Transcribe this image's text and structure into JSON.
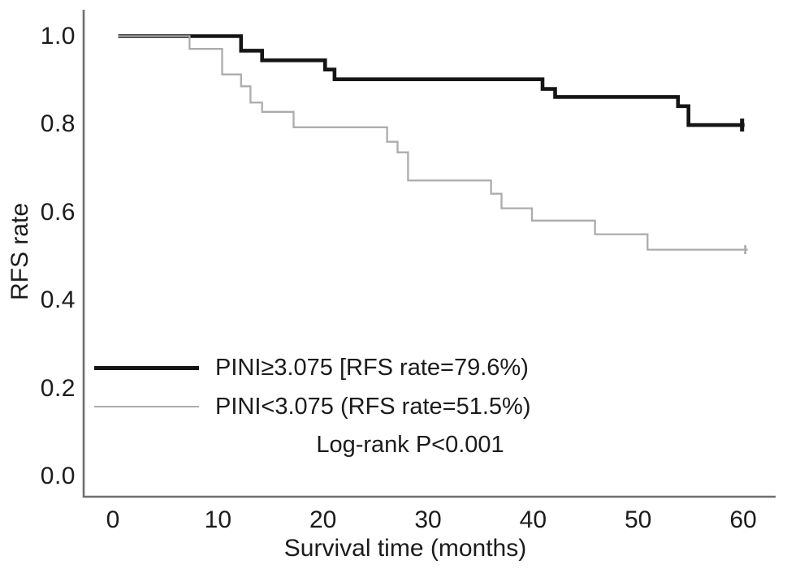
{
  "chart_data": {
    "type": "line",
    "subtype": "kaplan_meier_step",
    "title": "",
    "xlabel": "Survival time (months)",
    "ylabel": "RFS rate",
    "xlim": [
      0,
      60
    ],
    "ylim": [
      0.0,
      1.0
    ],
    "grid": false,
    "legend_position": "inside lower-left",
    "annotation": "Log-rank P<0.001",
    "axis_color": "#6f6f6f",
    "text_color": "#1b1b1b",
    "x_ticks": [
      {
        "value": 0,
        "label": "0"
      },
      {
        "value": 10,
        "label": "10"
      },
      {
        "value": 20,
        "label": "20"
      },
      {
        "value": 30,
        "label": "30"
      },
      {
        "value": 40,
        "label": "40"
      },
      {
        "value": 50,
        "label": "50"
      },
      {
        "value": 60,
        "label": "60"
      }
    ],
    "y_ticks": [
      {
        "value": 0.0,
        "label": "0.0"
      },
      {
        "value": 0.2,
        "label": "0.2"
      },
      {
        "value": 0.4,
        "label": "0.4"
      },
      {
        "value": 0.6,
        "label": "0.6"
      },
      {
        "value": 0.8,
        "label": "0.8"
      },
      {
        "value": 1.0,
        "label": "1.0"
      }
    ],
    "series": [
      {
        "name": "PINI≥3.075 [RFS rate=79.6%)",
        "color": "#151515",
        "line_width": 4.6,
        "censored_at_end": true,
        "end_month": 59.9,
        "points": [
          [
            0.5,
            1.0
          ],
          [
            12.2,
            0.967
          ],
          [
            14.2,
            0.945
          ],
          [
            20.2,
            0.924
          ],
          [
            21.1,
            0.902
          ],
          [
            40.9,
            0.88
          ],
          [
            42.1,
            0.862
          ],
          [
            53.8,
            0.841
          ],
          [
            54.8,
            0.798
          ]
        ]
      },
      {
        "name": "PINI<3.075 (RFS rate=51.5%)",
        "color": "#acacac",
        "line_width": 2.3,
        "censored_at_end": true,
        "end_month": 60.2,
        "points": [
          [
            0.5,
            1.0
          ],
          [
            7.3,
            0.971
          ],
          [
            10.4,
            0.913
          ],
          [
            12.2,
            0.886
          ],
          [
            13.1,
            0.849
          ],
          [
            14.2,
            0.828
          ],
          [
            17.2,
            0.793
          ],
          [
            26.1,
            0.76
          ],
          [
            27.1,
            0.736
          ],
          [
            28.1,
            0.672
          ],
          [
            36.0,
            0.642
          ],
          [
            37.0,
            0.609
          ],
          [
            39.9,
            0.581
          ],
          [
            45.9,
            0.55
          ],
          [
            50.9,
            0.515
          ]
        ]
      }
    ]
  }
}
